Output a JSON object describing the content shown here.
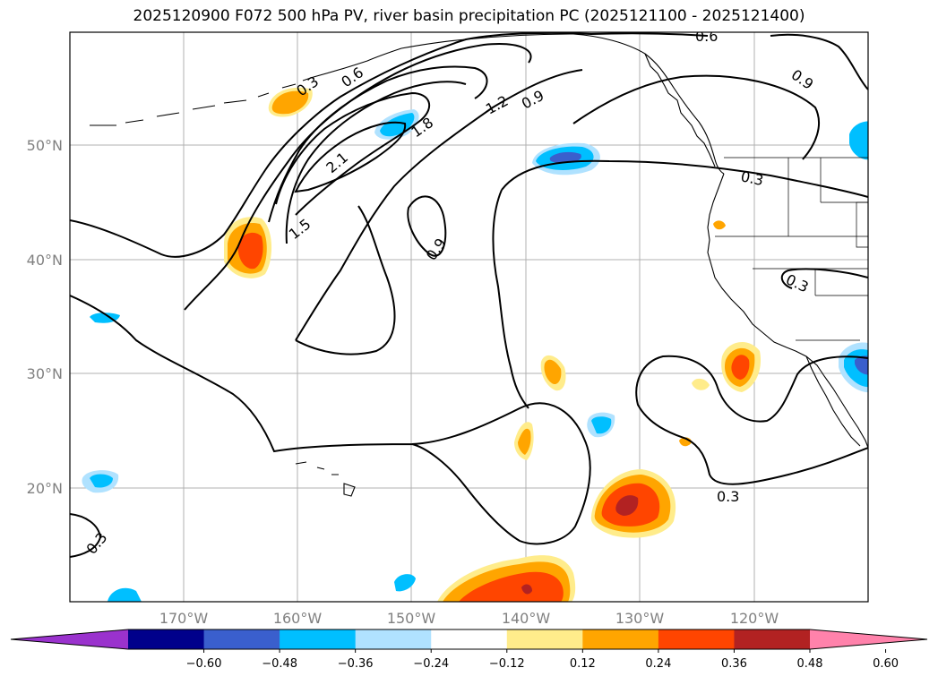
{
  "title": "2025120900 F072 500 hPa PV, river basin precipitation PC (2025121100 - 2025121400)",
  "map": {
    "lat_labels": [
      "50°N",
      "40°N",
      "30°N",
      "20°N"
    ],
    "lon_labels": [
      "170°W",
      "160°W",
      "150°W",
      "140°W",
      "130°W",
      "120°W"
    ],
    "contour_labels": [
      "0.3",
      "0.6",
      "0.6",
      "0.9",
      "1.2",
      "1.8",
      "2.1",
      "1.5",
      "0.9",
      "0.9",
      "0.3",
      "0.3",
      "0.3",
      "0.3"
    ]
  },
  "colorbar": {
    "colors": [
      "#9a32cd",
      "#00008b",
      "#3a5fcd",
      "#00bfff",
      "#b0e2ff",
      "#ffffff",
      "#ffec8b",
      "#ffa500",
      "#ff4500",
      "#b22222",
      "#ff82ab"
    ],
    "tick_labels": [
      "−0.60",
      "−0.48",
      "−0.36",
      "−0.24",
      "−0.12",
      "0.12",
      "0.24",
      "0.36",
      "0.48",
      "0.60"
    ]
  },
  "colors": {
    "contour": "#000000",
    "grid": "#b0b0b0",
    "coast": "#000000"
  }
}
